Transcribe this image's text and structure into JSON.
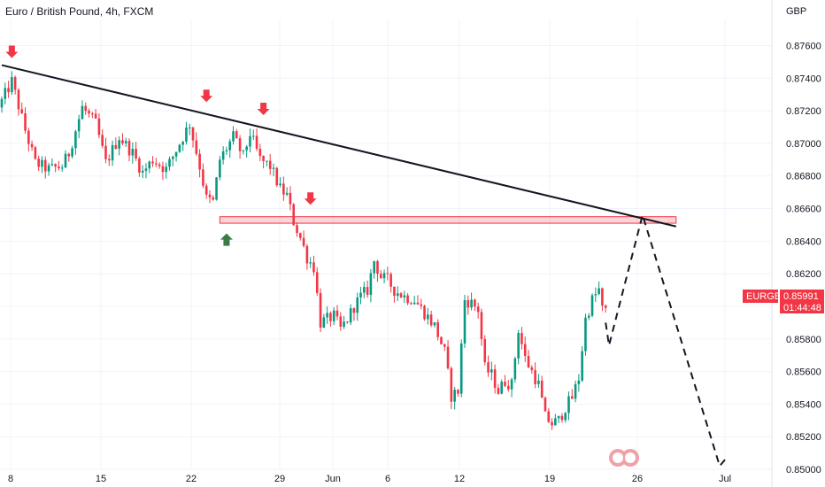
{
  "title": "Euro / British Pound, 4h, FXCM",
  "chart_data": {
    "type": "candlestick",
    "symbol": "EURGBP",
    "currency": "GBP",
    "ylim": [
      0.85,
      0.8776
    ],
    "y_ticks": [
      "0.87600",
      "0.87400",
      "0.87200",
      "0.87000",
      "0.86800",
      "0.86600",
      "0.86400",
      "0.86200",
      "0.86000",
      "0.85800",
      "0.85600",
      "0.85400",
      "0.85200",
      "0.85000"
    ],
    "x_ticks": [
      "8",
      "15",
      "22",
      "29",
      "Jun",
      "6",
      "12",
      "19",
      "26",
      "Jul"
    ],
    "last_price": "0.85991",
    "countdown": "01:44:48",
    "anchors": [
      {
        "t": 0,
        "p": 0.8722
      },
      {
        "t": 4,
        "p": 0.8738
      },
      {
        "t": 8,
        "p": 0.8708
      },
      {
        "t": 11,
        "p": 0.8688
      },
      {
        "t": 15,
        "p": 0.8684
      },
      {
        "t": 19,
        "p": 0.8686
      },
      {
        "t": 21,
        "p": 0.8694
      },
      {
        "t": 25,
        "p": 0.8722
      },
      {
        "t": 29,
        "p": 0.8712
      },
      {
        "t": 32,
        "p": 0.8688
      },
      {
        "t": 36,
        "p": 0.8704
      },
      {
        "t": 40,
        "p": 0.8694
      },
      {
        "t": 43,
        "p": 0.8682
      },
      {
        "t": 46,
        "p": 0.869
      },
      {
        "t": 50,
        "p": 0.8684
      },
      {
        "t": 54,
        "p": 0.87
      },
      {
        "t": 57,
        "p": 0.8712
      },
      {
        "t": 60,
        "p": 0.8686
      },
      {
        "t": 62,
        "p": 0.8666
      },
      {
        "t": 64,
        "p": 0.8664
      },
      {
        "t": 66,
        "p": 0.869
      },
      {
        "t": 70,
        "p": 0.8704
      },
      {
        "t": 73,
        "p": 0.8692
      },
      {
        "t": 75,
        "p": 0.8706
      },
      {
        "t": 78,
        "p": 0.869
      },
      {
        "t": 81,
        "p": 0.8686
      },
      {
        "t": 84,
        "p": 0.8672
      },
      {
        "t": 86,
        "p": 0.8668
      },
      {
        "t": 88,
        "p": 0.8652
      },
      {
        "t": 90,
        "p": 0.8642
      },
      {
        "t": 92,
        "p": 0.863
      },
      {
        "t": 94,
        "p": 0.8624
      },
      {
        "t": 96,
        "p": 0.859
      },
      {
        "t": 98,
        "p": 0.8592
      },
      {
        "t": 100,
        "p": 0.8594
      },
      {
        "t": 102,
        "p": 0.8586
      },
      {
        "t": 104,
        "p": 0.8592
      },
      {
        "t": 106,
        "p": 0.86
      },
      {
        "t": 108,
        "p": 0.8606
      },
      {
        "t": 110,
        "p": 0.861
      },
      {
        "t": 112,
        "p": 0.8628
      },
      {
        "t": 114,
        "p": 0.8618
      },
      {
        "t": 116,
        "p": 0.8616
      },
      {
        "t": 118,
        "p": 0.861
      },
      {
        "t": 121,
        "p": 0.8606
      },
      {
        "t": 124,
        "p": 0.8604
      },
      {
        "t": 127,
        "p": 0.8596
      },
      {
        "t": 130,
        "p": 0.8588
      },
      {
        "t": 133,
        "p": 0.8572
      },
      {
        "t": 135,
        "p": 0.8545
      },
      {
        "t": 137,
        "p": 0.8548
      },
      {
        "t": 139,
        "p": 0.8604
      },
      {
        "t": 141,
        "p": 0.8602
      },
      {
        "t": 143,
        "p": 0.8598
      },
      {
        "t": 145,
        "p": 0.8562
      },
      {
        "t": 147,
        "p": 0.8558
      },
      {
        "t": 149,
        "p": 0.8548
      },
      {
        "t": 151,
        "p": 0.8554
      },
      {
        "t": 153,
        "p": 0.8552
      },
      {
        "t": 155,
        "p": 0.8586
      },
      {
        "t": 157,
        "p": 0.8568
      },
      {
        "t": 159,
        "p": 0.856
      },
      {
        "t": 161,
        "p": 0.8552
      },
      {
        "t": 163,
        "p": 0.8532
      },
      {
        "t": 165,
        "p": 0.8528
      },
      {
        "t": 167,
        "p": 0.853
      },
      {
        "t": 169,
        "p": 0.8538
      },
      {
        "t": 171,
        "p": 0.8544
      },
      {
        "t": 173,
        "p": 0.8556
      },
      {
        "t": 175,
        "p": 0.8592
      },
      {
        "t": 177,
        "p": 0.8604
      },
      {
        "t": 179,
        "p": 0.861
      },
      {
        "t": 180,
        "p": 0.8598
      }
    ],
    "trendline": [
      {
        "t": 0,
        "p": 0.8748
      },
      {
        "t": 201,
        "p": 0.8649
      }
    ],
    "resistance_zone": [
      0.8655,
      0.8651
    ],
    "projection": [
      {
        "t": 180,
        "p": 0.859
      },
      {
        "t": 181,
        "p": 0.8576
      },
      {
        "t": 191,
        "p": 0.8656
      },
      {
        "t": 214,
        "p": 0.8502
      },
      {
        "t": 216,
        "p": 0.8507
      }
    ],
    "sell_markers": [
      {
        "t": 3,
        "p": 0.8748
      },
      {
        "t": 61,
        "p": 0.8721
      },
      {
        "t": 78,
        "p": 0.8713
      },
      {
        "t": 92,
        "p": 0.8658
      }
    ],
    "buy_markers": [
      {
        "t": 67,
        "p": 0.8648
      }
    ]
  }
}
